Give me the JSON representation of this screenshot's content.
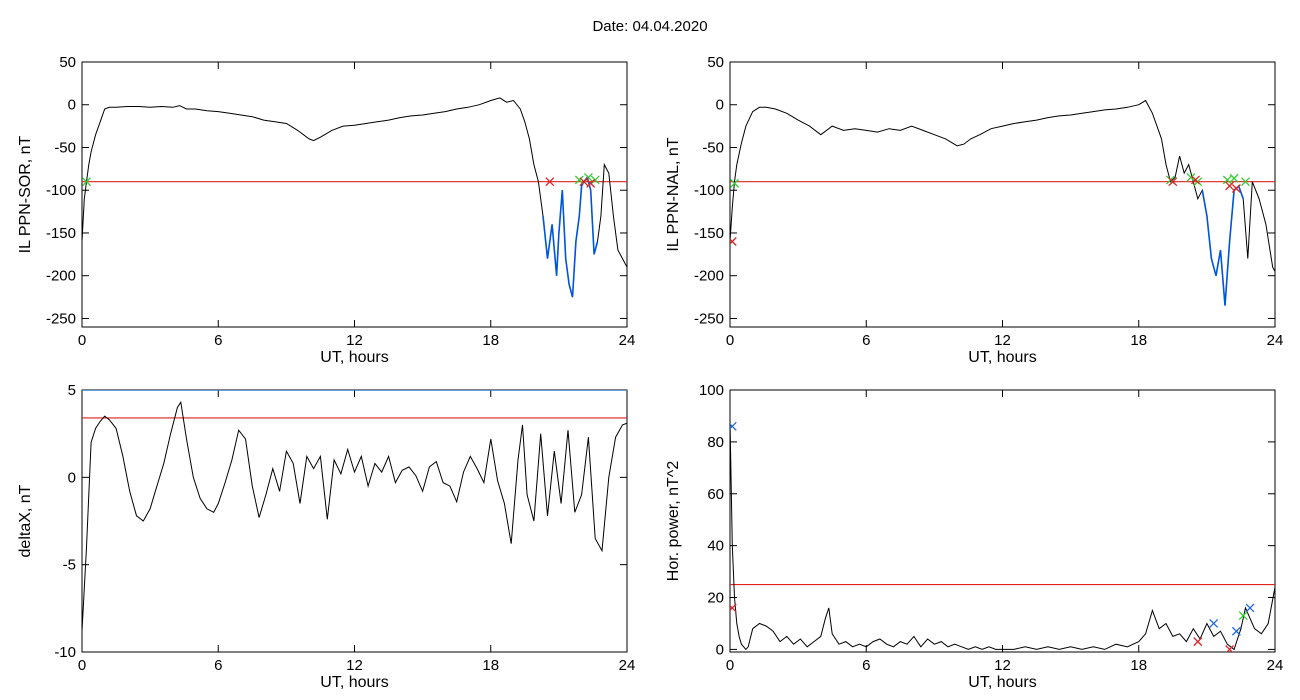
{
  "page": {
    "title": "Date:  04.04.2020"
  },
  "chart_data": [
    {
      "id": "sor",
      "type": "line",
      "title": "",
      "xlabel": "UT, hours",
      "ylabel": "IL PPN-SOR, nT",
      "xlim": [
        0,
        24
      ],
      "ylim": [
        -260,
        50
      ],
      "xticks": [
        0,
        6,
        12,
        18,
        24
      ],
      "yticks": [
        50,
        0,
        -50,
        -100,
        -150,
        -200,
        -250
      ],
      "threshold": -90,
      "series": [
        {
          "color": "#000000",
          "x": [
            0.0,
            0.1,
            0.2,
            0.3,
            0.4,
            0.6,
            0.8,
            1.0,
            1.2,
            1.5,
            2.0,
            2.5,
            3.0,
            3.5,
            4.0,
            4.3,
            4.6,
            5.0,
            5.5,
            6.0,
            6.5,
            7.0,
            7.5,
            8.0,
            8.5,
            9.0,
            9.5,
            10.0,
            10.2,
            10.5,
            11.0,
            11.5,
            12.0,
            12.5,
            13.0,
            13.5,
            14.0,
            14.5,
            15.0,
            15.5,
            16.0,
            16.5,
            17.0,
            17.5,
            18.0,
            18.4,
            18.7,
            19.0,
            19.3,
            19.5,
            19.7,
            19.9,
            20.1,
            20.3,
            20.5,
            20.7,
            20.9,
            21.0,
            21.15,
            21.3,
            21.45,
            21.6,
            21.75,
            21.9,
            22.0,
            22.1,
            22.25,
            22.4,
            22.55,
            22.7,
            22.85,
            23.0,
            23.2,
            23.4,
            23.6,
            23.8,
            24.0
          ],
          "y": [
            -160,
            -110,
            -90,
            -70,
            -55,
            -35,
            -20,
            -5,
            -3,
            -3,
            -2,
            -2,
            -3,
            -2,
            -3,
            -1,
            -5,
            -5,
            -7,
            -8,
            -10,
            -12,
            -14,
            -18,
            -20,
            -22,
            -30,
            -40,
            -42,
            -38,
            -30,
            -25,
            -24,
            -22,
            -20,
            -18,
            -15,
            -13,
            -12,
            -10,
            -8,
            -5,
            -3,
            0,
            5,
            8,
            3,
            5,
            -5,
            -20,
            -40,
            -70,
            -90,
            -130,
            -180,
            -140,
            -200,
            -150,
            -100,
            -180,
            -210,
            -225,
            -160,
            -130,
            -95,
            -90,
            -85,
            -100,
            -175,
            -160,
            -130,
            -70,
            -80,
            -130,
            -170,
            -180,
            -190
          ]
        },
        {
          "color": "#0055dd",
          "x": [
            20.3,
            20.5,
            20.7,
            20.9,
            21.0,
            21.15,
            21.3,
            21.45,
            21.6,
            21.75,
            21.9,
            22.0,
            22.1,
            22.25,
            22.4,
            22.55,
            22.7
          ],
          "y": [
            -130,
            -180,
            -140,
            -200,
            -150,
            -100,
            -180,
            -210,
            -225,
            -160,
            -130,
            -95,
            -90,
            -85,
            -100,
            -175,
            -160
          ]
        }
      ],
      "markers": [
        {
          "color": "#33cc33",
          "x": [
            0.2,
            21.9,
            22.3,
            22.6
          ],
          "y": [
            -90,
            -88,
            -85,
            -88
          ]
        },
        {
          "color": "#dd2222",
          "x": [
            20.6,
            22.1,
            22.4
          ],
          "y": [
            -90,
            -90,
            -92
          ]
        }
      ]
    },
    {
      "id": "nal",
      "type": "line",
      "title": "",
      "xlabel": "UT, hours",
      "ylabel": "IL PPN-NAL, nT",
      "xlim": [
        0,
        24
      ],
      "ylim": [
        -260,
        50
      ],
      "xticks": [
        0,
        6,
        12,
        18,
        24
      ],
      "yticks": [
        50,
        0,
        -50,
        -100,
        -150,
        -200,
        -250
      ],
      "threshold": -90,
      "series": [
        {
          "color": "#000000",
          "x": [
            0.0,
            0.1,
            0.2,
            0.3,
            0.5,
            0.7,
            1.0,
            1.3,
            1.6,
            2.0,
            2.5,
            3.0,
            3.5,
            4.0,
            4.5,
            5.0,
            5.5,
            6.0,
            6.5,
            7.0,
            7.5,
            8.0,
            8.5,
            9.0,
            9.5,
            10.0,
            10.3,
            10.6,
            11.0,
            11.5,
            12.0,
            12.5,
            13.0,
            13.5,
            14.0,
            14.5,
            15.0,
            15.5,
            16.0,
            16.5,
            17.0,
            17.5,
            18.0,
            18.3,
            18.6,
            19.0,
            19.2,
            19.4,
            19.6,
            19.8,
            20.0,
            20.2,
            20.4,
            20.6,
            20.8,
            21.0,
            21.2,
            21.4,
            21.6,
            21.8,
            22.0,
            22.2,
            22.4,
            22.6,
            22.8,
            23.0,
            23.3,
            23.6,
            23.9,
            24.0
          ],
          "y": [
            -160,
            -120,
            -90,
            -70,
            -45,
            -25,
            -8,
            -3,
            -3,
            -5,
            -10,
            -18,
            -25,
            -35,
            -25,
            -30,
            -28,
            -30,
            -32,
            -28,
            -30,
            -25,
            -30,
            -35,
            -40,
            -48,
            -46,
            -40,
            -35,
            -28,
            -25,
            -22,
            -20,
            -18,
            -15,
            -13,
            -12,
            -10,
            -8,
            -6,
            -5,
            -3,
            0,
            5,
            -10,
            -40,
            -70,
            -90,
            -85,
            -60,
            -80,
            -70,
            -90,
            -110,
            -100,
            -130,
            -180,
            -200,
            -170,
            -235,
            -160,
            -100,
            -95,
            -110,
            -180,
            -90,
            -110,
            -140,
            -190,
            -195
          ]
        },
        {
          "color": "#0055dd",
          "x": [
            20.8,
            21.0,
            21.2,
            21.4,
            21.6,
            21.8,
            22.0,
            22.2,
            22.4,
            22.6
          ],
          "y": [
            -100,
            -130,
            -180,
            -200,
            -170,
            -235,
            -160,
            -100,
            -95,
            -110
          ]
        }
      ],
      "markers": [
        {
          "color": "#33cc33",
          "x": [
            0.2,
            19.4,
            20.3,
            20.6,
            21.9,
            22.2,
            22.7
          ],
          "y": [
            -92,
            -88,
            -85,
            -90,
            -88,
            -86,
            -90
          ]
        },
        {
          "color": "#dd2222",
          "x": [
            0.1,
            19.5,
            20.5,
            22.0,
            22.3
          ],
          "y": [
            -160,
            -90,
            -88,
            -95,
            -98
          ]
        }
      ]
    },
    {
      "id": "deltax",
      "type": "line",
      "title": "",
      "xlabel": "UT, hours",
      "ylabel": "deltaX, nT",
      "xlim": [
        0,
        24
      ],
      "ylim": [
        -10,
        5
      ],
      "xticks": [
        0,
        6,
        12,
        18,
        24
      ],
      "yticks": [
        5,
        0,
        -5,
        -10
      ],
      "threshold": 3.4,
      "topline": 5,
      "series": [
        {
          "color": "#000000",
          "x": [
            0.0,
            0.2,
            0.4,
            0.6,
            0.8,
            1.0,
            1.2,
            1.5,
            1.8,
            2.1,
            2.4,
            2.7,
            3.0,
            3.3,
            3.6,
            3.9,
            4.2,
            4.35,
            4.6,
            4.9,
            5.2,
            5.5,
            5.8,
            6.0,
            6.3,
            6.6,
            6.9,
            7.2,
            7.5,
            7.8,
            8.1,
            8.4,
            8.7,
            9.0,
            9.3,
            9.6,
            9.9,
            10.2,
            10.5,
            10.8,
            11.1,
            11.4,
            11.7,
            12.0,
            12.3,
            12.6,
            12.9,
            13.2,
            13.5,
            13.8,
            14.1,
            14.4,
            14.7,
            15.0,
            15.3,
            15.6,
            15.9,
            16.2,
            16.5,
            16.8,
            17.1,
            17.4,
            17.7,
            18.0,
            18.3,
            18.6,
            18.9,
            19.2,
            19.4,
            19.6,
            19.9,
            20.2,
            20.5,
            20.8,
            21.1,
            21.4,
            21.7,
            22.0,
            22.3,
            22.6,
            22.9,
            23.2,
            23.5,
            23.8,
            24.0
          ],
          "y": [
            -8.8,
            -4,
            2,
            2.8,
            3.2,
            3.5,
            3.3,
            2.8,
            1.2,
            -0.8,
            -2.2,
            -2.5,
            -1.8,
            -0.5,
            0.8,
            2.5,
            4,
            4.3,
            2.2,
            0,
            -1.2,
            -1.8,
            -2,
            -1.5,
            -0.3,
            1,
            2.7,
            2.2,
            -0.5,
            -2.3,
            -1,
            0.5,
            -0.8,
            1.5,
            0.8,
            -1.5,
            1.2,
            0.5,
            1.2,
            -2.4,
            1,
            0.2,
            1.6,
            0.3,
            1.2,
            -0.5,
            0.8,
            0.3,
            1.2,
            -0.3,
            0.4,
            0.6,
            0.1,
            -0.8,
            0.6,
            0.9,
            -0.3,
            -0.5,
            -1.4,
            0.3,
            1.2,
            0.5,
            -0.3,
            2.2,
            -0.2,
            -1.5,
            -3.8,
            1,
            3,
            -1,
            -2.5,
            2.5,
            -2.2,
            1.5,
            -1.5,
            2.7,
            -2,
            -1,
            2.3,
            -3.5,
            -4.2,
            0,
            2.3,
            3,
            3.1
          ]
        }
      ],
      "markers": []
    },
    {
      "id": "power",
      "type": "line",
      "title": "",
      "xlabel": "UT, hours",
      "ylabel": "Hor. power, nT^2",
      "xlim": [
        0,
        24
      ],
      "ylim": [
        -1,
        100
      ],
      "xticks": [
        0,
        6,
        12,
        18,
        24
      ],
      "yticks": [
        100,
        80,
        60,
        40,
        20,
        0
      ],
      "threshold": 25,
      "series": [
        {
          "color": "#000000",
          "x": [
            0.0,
            0.1,
            0.2,
            0.3,
            0.4,
            0.5,
            0.7,
            0.8,
            1.0,
            1.3,
            1.6,
            1.9,
            2.2,
            2.5,
            2.8,
            3.1,
            3.4,
            3.7,
            4.0,
            4.2,
            4.35,
            4.5,
            4.8,
            5.1,
            5.4,
            5.7,
            6.0,
            6.3,
            6.6,
            6.9,
            7.2,
            7.5,
            7.8,
            8.1,
            8.4,
            8.7,
            9.0,
            9.3,
            9.6,
            9.9,
            10.2,
            10.5,
            10.8,
            11.1,
            11.4,
            11.7,
            12.0,
            12.5,
            13.0,
            13.5,
            14.0,
            14.5,
            15.0,
            15.5,
            16.0,
            16.5,
            17.0,
            17.5,
            18.0,
            18.3,
            18.6,
            18.9,
            19.2,
            19.5,
            19.8,
            20.1,
            20.4,
            20.7,
            21.0,
            21.3,
            21.6,
            21.9,
            22.2,
            22.5,
            22.7,
            22.9,
            23.1,
            23.4,
            23.7,
            24.0
          ],
          "y": [
            88,
            40,
            20,
            10,
            5,
            2,
            0,
            1,
            8,
            10,
            9,
            7,
            3,
            5,
            2,
            4,
            1,
            3,
            5,
            12,
            16,
            6,
            2,
            3,
            1,
            2,
            1,
            3,
            4,
            2,
            1,
            3,
            2,
            5,
            1,
            4,
            2,
            3,
            1,
            2,
            1,
            0,
            1,
            0,
            1,
            0,
            0,
            0,
            1,
            0,
            1,
            0,
            1,
            0,
            1,
            0,
            2,
            1,
            3,
            6,
            15,
            8,
            10,
            5,
            6,
            3,
            8,
            4,
            10,
            5,
            7,
            2,
            0,
            8,
            16,
            12,
            8,
            6,
            10,
            24
          ]
        }
      ],
      "markers": [
        {
          "color": "#dd2222",
          "x": [
            0.1,
            20.6,
            22.0
          ],
          "y": [
            16,
            3,
            0
          ]
        },
        {
          "color": "#2266dd",
          "x": [
            0.1,
            21.3,
            22.3,
            22.9
          ],
          "y": [
            86,
            10,
            7,
            16
          ]
        },
        {
          "color": "#33cc33",
          "x": [
            22.6
          ],
          "y": [
            13
          ]
        }
      ]
    }
  ]
}
